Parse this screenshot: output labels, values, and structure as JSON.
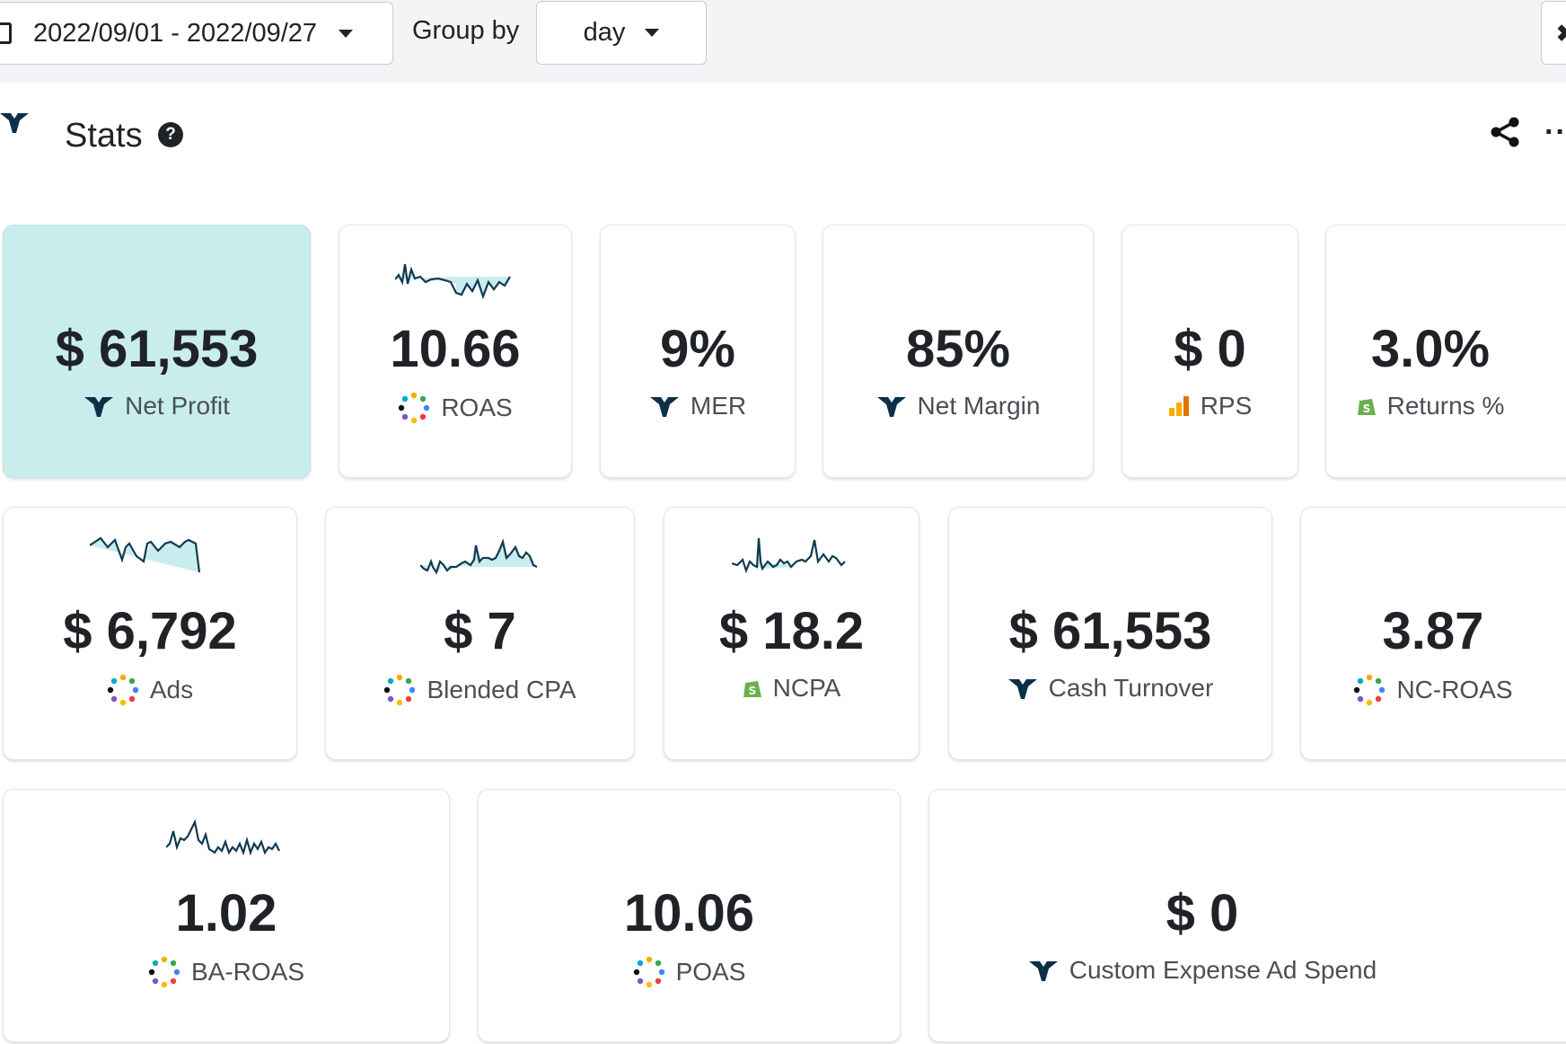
{
  "toolbar": {
    "date_range": "2022/09/01 - 2022/09/27",
    "group_by_label": "Group by",
    "group_by_value": "day"
  },
  "header": {
    "title": "Stats",
    "help_icon": "question-circle-icon",
    "share_icon": "share-icon",
    "more_icon": "more-dots-icon",
    "more_glyph": "···"
  },
  "colors": {
    "highlight_card": "#c9ecec",
    "sparkline": "#0f3a52",
    "sparkline_fill": "#c9ecec",
    "triple_whale": "#0b3047",
    "google": "#f9ab00",
    "shopify": "#6ab04c"
  },
  "cards": [
    {
      "value": "$ 61,553",
      "label": "Net Profit",
      "icon": "triple-whale-icon"
    },
    {
      "value": "10.66",
      "label": "ROAS",
      "icon": "pixel-dots-icon"
    },
    {
      "value": "9%",
      "label": "MER",
      "icon": "triple-whale-icon"
    },
    {
      "value": "85%",
      "label": "Net Margin",
      "icon": "triple-whale-icon"
    },
    {
      "value": "$ 0",
      "label": "RPS",
      "icon": "google-analytics-icon"
    },
    {
      "value": "3.0%",
      "label": "Returns %",
      "icon": "shopify-icon"
    },
    {
      "value": "$ 6,792",
      "label": "Ads",
      "icon": "pixel-dots-icon"
    },
    {
      "value": "$ 7",
      "label": "Blended CPA",
      "icon": "pixel-dots-icon"
    },
    {
      "value": "$ 18.2",
      "label": "NCPA",
      "icon": "shopify-icon"
    },
    {
      "value": "$ 61,553",
      "label": "Cash Turnover",
      "icon": "triple-whale-icon"
    },
    {
      "value": "3.87",
      "label": "NC-ROAS",
      "icon": "pixel-dots-icon"
    },
    {
      "value": "1.02",
      "label": "BA-ROAS",
      "icon": "pixel-dots-icon"
    },
    {
      "value": "10.06",
      "label": "POAS",
      "icon": "pixel-dots-icon"
    },
    {
      "value": "$ 0",
      "label": "Custom Expense Ad Spend",
      "icon": "triple-whale-icon"
    }
  ]
}
